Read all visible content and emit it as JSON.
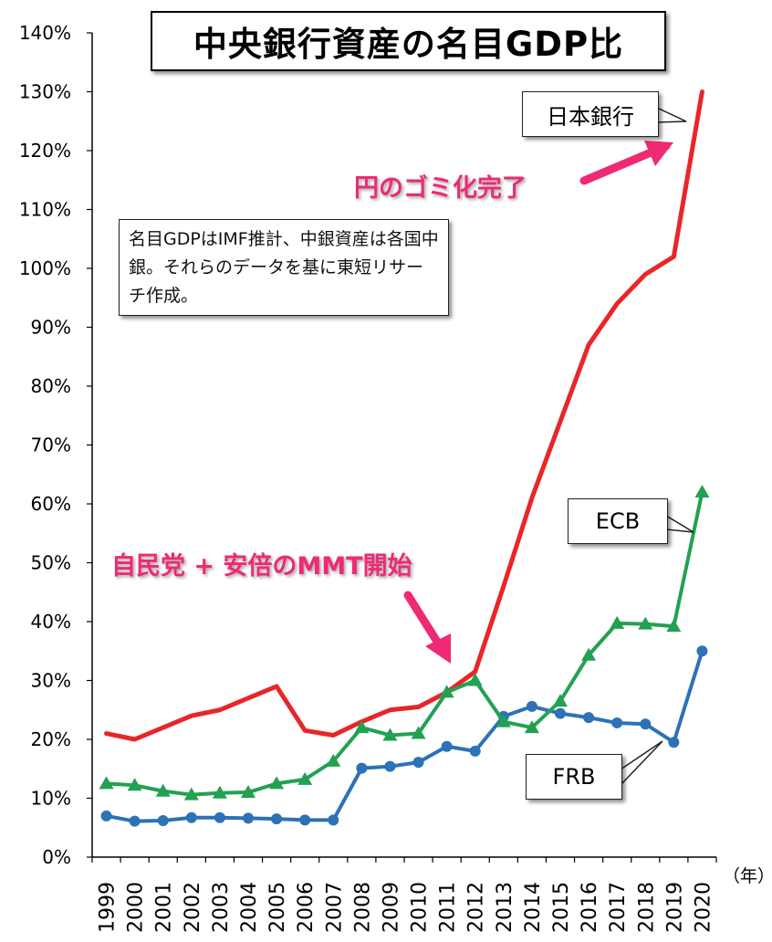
{
  "title": "中央銀行資産の名目GDP比",
  "note": "名目GDPはIMF推計、中銀資産は各国中銀。それらのデータを基に東短リサーチ作成。",
  "annotations": {
    "yen_trash": "円のゴミ化完了",
    "ldp_abe": "自民党 + 安倍のMMT開始"
  },
  "colors": {
    "boj": "#e8262a",
    "ecb": "#22a152",
    "frb": "#2c72b6",
    "annotation": "#ee2a74"
  },
  "chart_data": {
    "type": "line",
    "x_unit_label": "（年）",
    "categories": [
      "1999",
      "2000",
      "2001",
      "2002",
      "2003",
      "2004",
      "2005",
      "2006",
      "2007",
      "2008",
      "2009",
      "2010",
      "2011",
      "2012",
      "2013",
      "2014",
      "2015",
      "2016",
      "2017",
      "2018",
      "2019",
      "2020"
    ],
    "ylim": [
      0,
      140
    ],
    "yticks": [
      "0%",
      "10%",
      "20%",
      "30%",
      "40%",
      "50%",
      "60%",
      "70%",
      "80%",
      "90%",
      "100%",
      "110%",
      "120%",
      "130%",
      "140%"
    ],
    "grid": false,
    "series": [
      {
        "name": "日本銀行",
        "marker": "none",
        "values": [
          21,
          20,
          22,
          24,
          25,
          27,
          29,
          21.5,
          20.7,
          23,
          25,
          25.5,
          28,
          31.5,
          46,
          61,
          74,
          87,
          94,
          99,
          102,
          130
        ]
      },
      {
        "name": "ECB",
        "marker": "triangle",
        "values": [
          12.5,
          12.2,
          11.2,
          10.6,
          10.9,
          11.0,
          12.5,
          13.2,
          16.3,
          22.0,
          20.7,
          21.0,
          28.0,
          30.0,
          23.0,
          22.0,
          26.5,
          34.3,
          39.7,
          39.6,
          39.2,
          62.0
        ]
      },
      {
        "name": "FRB",
        "marker": "circle",
        "values": [
          7.0,
          6.1,
          6.2,
          6.7,
          6.7,
          6.6,
          6.5,
          6.3,
          6.3,
          15.1,
          15.4,
          16.1,
          18.8,
          18.0,
          23.9,
          25.6,
          24.4,
          23.7,
          22.8,
          22.6,
          19.5,
          35.0
        ]
      }
    ]
  }
}
